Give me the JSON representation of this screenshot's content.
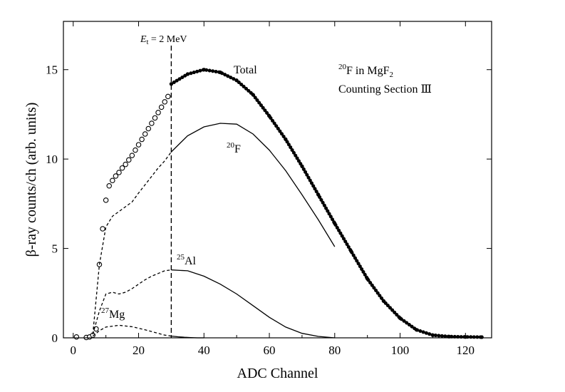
{
  "chart_data": {
    "type": "line",
    "xlabel": "ADC Channel",
    "ylabel": "β-ray counts/ch (arb. units)",
    "xlim": [
      -3,
      128
    ],
    "ylim": [
      0,
      17.7
    ],
    "xticks": [
      0,
      20,
      40,
      60,
      80,
      100,
      120
    ],
    "yticks": [
      0,
      5,
      10,
      15
    ],
    "grid": false,
    "threshold": {
      "x": 30,
      "label_symbol": "E",
      "label_sub": "t",
      "label_rest": " = 2 MeV"
    },
    "annotations": {
      "total": "Total",
      "f20_sup": "20",
      "f20_base": "F",
      "al25_sup": "25",
      "al25_base": "Al",
      "mg27_sup": "27",
      "mg27_base": "Mg",
      "info_line1_sup": "20",
      "info_line1_a": "F in MgF",
      "info_line1_sub": "2",
      "info_line2": "Counting Section Ⅲ"
    },
    "series": [
      {
        "style": "open-circles",
        "x": [
          1,
          4,
          5,
          6,
          7,
          8,
          9,
          10,
          11,
          12,
          13,
          14,
          15,
          16,
          17,
          18,
          19,
          20,
          21,
          22,
          23,
          24,
          25,
          26,
          27,
          28,
          29
        ],
        "y": [
          0.05,
          0.02,
          0.05,
          0.15,
          0.5,
          4.1,
          6.1,
          7.7,
          8.5,
          8.8,
          9.05,
          9.25,
          9.5,
          9.7,
          9.95,
          10.2,
          10.5,
          10.8,
          11.1,
          11.4,
          11.7,
          12.0,
          12.3,
          12.6,
          12.9,
          13.2,
          13.5
        ]
      },
      {
        "style": "filled-dots",
        "x": [
          30,
          35,
          40,
          45,
          50,
          55,
          60,
          65,
          70,
          75,
          80,
          85,
          90,
          95,
          100,
          105,
          110,
          115,
          120,
          125
        ],
        "y": [
          14.2,
          14.75,
          15.0,
          14.85,
          14.4,
          13.6,
          12.4,
          11.1,
          9.6,
          8.0,
          6.4,
          4.85,
          3.3,
          2.05,
          1.1,
          0.45,
          0.15,
          0.07,
          0.05,
          0.04
        ]
      },
      {
        "style": "solid",
        "x": [
          30,
          35,
          40,
          45,
          50,
          55,
          60,
          65,
          70,
          75,
          80
        ],
        "y": [
          10.4,
          11.3,
          11.8,
          12.0,
          11.95,
          11.4,
          10.5,
          9.35,
          8.0,
          6.6,
          5.1
        ]
      },
      {
        "style": "dashed",
        "x": [
          6,
          8,
          10,
          12,
          15,
          18,
          20,
          23,
          26,
          28,
          30
        ],
        "y": [
          0.2,
          4.1,
          6.2,
          6.8,
          7.2,
          7.6,
          8.1,
          8.8,
          9.5,
          9.9,
          10.4
        ]
      },
      {
        "style": "solid",
        "x": [
          30,
          35,
          40,
          45,
          50,
          55,
          60,
          65,
          70,
          75,
          80
        ],
        "y": [
          3.8,
          3.75,
          3.45,
          3.0,
          2.45,
          1.8,
          1.15,
          0.6,
          0.25,
          0.08,
          0.0
        ]
      },
      {
        "style": "dashed",
        "x": [
          6,
          8,
          10,
          12,
          14,
          16,
          18,
          20,
          22,
          24,
          26,
          28,
          30
        ],
        "y": [
          0.2,
          1.5,
          2.45,
          2.55,
          2.45,
          2.55,
          2.75,
          3.0,
          3.25,
          3.45,
          3.6,
          3.75,
          3.8
        ]
      },
      {
        "style": "solid",
        "x": [
          30,
          32,
          34,
          36,
          38,
          40
        ],
        "y": [
          0.1,
          0.06,
          0.03,
          0.01,
          0.0,
          0.0
        ]
      },
      {
        "style": "dashed",
        "x": [
          6,
          8,
          10,
          14,
          18,
          22,
          26,
          28,
          30
        ],
        "y": [
          0.1,
          0.4,
          0.6,
          0.7,
          0.62,
          0.45,
          0.25,
          0.15,
          0.1
        ]
      }
    ]
  }
}
